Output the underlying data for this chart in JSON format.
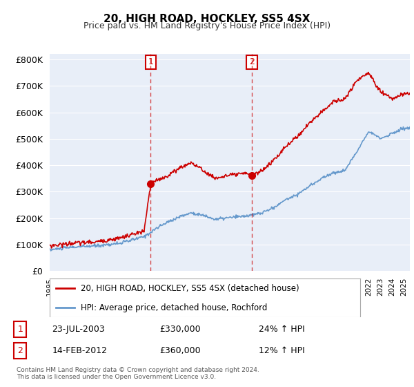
{
  "title": "20, HIGH ROAD, HOCKLEY, SS5 4SX",
  "subtitle": "Price paid vs. HM Land Registry's House Price Index (HPI)",
  "ylabel": "",
  "bg_color": "#e8eef8",
  "plot_bg_color": "#e8eef8",
  "legend_line1": "20, HIGH ROAD, HOCKLEY, SS5 4SX (detached house)",
  "legend_line2": "HPI: Average price, detached house, Rochford",
  "sale1_label": "1",
  "sale1_date": "23-JUL-2003",
  "sale1_price": "£330,000",
  "sale1_hpi": "24% ↑ HPI",
  "sale2_label": "2",
  "sale2_date": "14-FEB-2012",
  "sale2_price": "£360,000",
  "sale2_hpi": "12% ↑ HPI",
  "footer": "Contains HM Land Registry data © Crown copyright and database right 2024.\nThis data is licensed under the Open Government Licence v3.0.",
  "sale1_x": 2003.55,
  "sale1_y": 330000,
  "sale2_x": 2012.12,
  "sale2_y": 360000,
  "vline1_x": 2003.55,
  "vline2_x": 2012.12,
  "ylim": [
    0,
    820000
  ],
  "xlim_start": 1995,
  "xlim_end": 2025.5,
  "red_color": "#cc0000",
  "blue_color": "#6699cc",
  "marker_color_red": "#cc0000",
  "marker_color_blue": "#6699cc"
}
